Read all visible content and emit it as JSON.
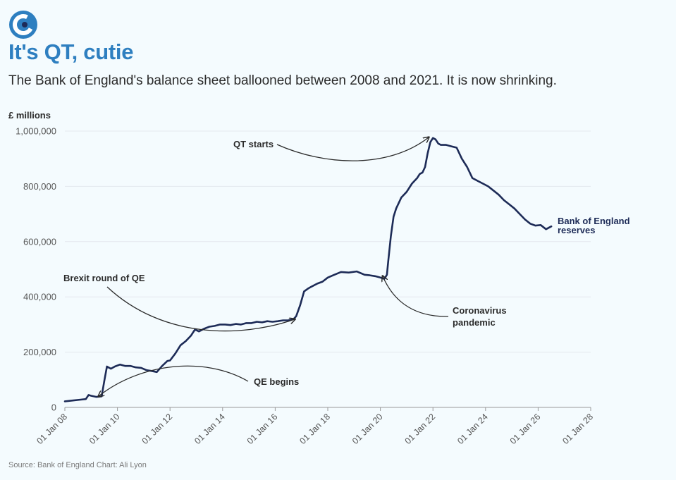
{
  "header": {
    "title": "It's QT, cutie",
    "subtitle": "The Bank of England's balance sheet ballooned between 2008 and 2021. It is now shrinking.",
    "logo_icon": "c-logo-icon"
  },
  "footer": {
    "source": "Source: Bank of England Chart: Ali Lyon"
  },
  "colors": {
    "title": "#2e7fc0",
    "line": "#1d2b57",
    "logo": "#2e7fc0"
  },
  "chart_data": {
    "type": "line",
    "ylabel": "£ millions",
    "ylim": [
      0,
      1000000
    ],
    "xlim": [
      2008,
      2028
    ],
    "y_ticks": [
      {
        "value": 0,
        "label": "0"
      },
      {
        "value": 200000,
        "label": "200,000"
      },
      {
        "value": 400000,
        "label": "400,000"
      },
      {
        "value": 600000,
        "label": "600,000"
      },
      {
        "value": 800000,
        "label": "800,000"
      },
      {
        "value": 1000000,
        "label": "1,000,000"
      }
    ],
    "x_ticks": [
      {
        "value": 2008,
        "label": "01 Jan 08"
      },
      {
        "value": 2010,
        "label": "01 Jan 10"
      },
      {
        "value": 2012,
        "label": "01 Jan 12"
      },
      {
        "value": 2014,
        "label": "01 Jan 14"
      },
      {
        "value": 2016,
        "label": "01 Jan 16"
      },
      {
        "value": 2018,
        "label": "01 Jan 18"
      },
      {
        "value": 2020,
        "label": "01 Jan 20"
      },
      {
        "value": 2022,
        "label": "01 Jan 22"
      },
      {
        "value": 2024,
        "label": "01 Jan 24"
      },
      {
        "value": 2026,
        "label": "01 Jan 26"
      },
      {
        "value": 2028,
        "label": "01 Jan 28"
      }
    ],
    "grid": true,
    "series": [
      {
        "name": "Bank of England reserves",
        "x": [
          2008.0,
          2008.3,
          2008.6,
          2008.8,
          2008.9,
          2009.0,
          2009.2,
          2009.4,
          2009.5,
          2009.6,
          2009.75,
          2009.9,
          2010.1,
          2010.3,
          2010.5,
          2010.7,
          2010.9,
          2011.1,
          2011.3,
          2011.5,
          2011.7,
          2011.9,
          2012.0,
          2012.2,
          2012.4,
          2012.6,
          2012.8,
          2012.95,
          2013.1,
          2013.3,
          2013.5,
          2013.7,
          2013.9,
          2014.1,
          2014.3,
          2014.5,
          2014.7,
          2014.9,
          2015.1,
          2015.3,
          2015.5,
          2015.7,
          2015.9,
          2016.1,
          2016.3,
          2016.5,
          2016.7,
          2016.8,
          2016.95,
          2017.1,
          2017.25,
          2017.4,
          2017.6,
          2017.8,
          2018.0,
          2018.2,
          2018.5,
          2018.8,
          2019.1,
          2019.4,
          2019.6,
          2019.8,
          2020.0,
          2020.15,
          2020.25,
          2020.3,
          2020.4,
          2020.5,
          2020.6,
          2020.8,
          2021.0,
          2021.2,
          2021.4,
          2021.5,
          2021.6,
          2021.7,
          2021.8,
          2021.9,
          2022.0,
          2022.1,
          2022.2,
          2022.3,
          2022.5,
          2022.7,
          2022.9,
          2023.1,
          2023.3,
          2023.5,
          2023.7,
          2023.9,
          2024.1,
          2024.3,
          2024.5,
          2024.7,
          2024.9,
          2025.1,
          2025.3,
          2025.5,
          2025.7,
          2025.9,
          2026.1,
          2026.3,
          2026.5
        ],
        "values": [
          22000,
          25000,
          28000,
          30000,
          45000,
          42000,
          38000,
          40000,
          95000,
          148000,
          140000,
          148000,
          155000,
          150000,
          150000,
          145000,
          143000,
          135000,
          132000,
          128000,
          150000,
          168000,
          170000,
          195000,
          225000,
          240000,
          260000,
          282000,
          275000,
          285000,
          292000,
          295000,
          300000,
          300000,
          298000,
          302000,
          300000,
          305000,
          305000,
          310000,
          308000,
          312000,
          310000,
          312000,
          315000,
          315000,
          320000,
          330000,
          370000,
          420000,
          430000,
          438000,
          448000,
          455000,
          470000,
          478000,
          490000,
          488000,
          492000,
          480000,
          478000,
          475000,
          470000,
          465000,
          480000,
          530000,
          620000,
          690000,
          720000,
          760000,
          780000,
          810000,
          830000,
          845000,
          850000,
          870000,
          920000,
          960000,
          975000,
          970000,
          955000,
          950000,
          950000,
          945000,
          940000,
          900000,
          870000,
          830000,
          820000,
          810000,
          800000,
          785000,
          770000,
          750000,
          735000,
          720000,
          700000,
          680000,
          665000,
          658000,
          660000,
          645000,
          655000
        ]
      }
    ],
    "annotations": [
      {
        "id": "qe-begins",
        "lines": [
          "QE begins"
        ],
        "x": 2009.3,
        "y": 40000
      },
      {
        "id": "brexit",
        "lines": [
          "Brexit round of QE"
        ],
        "x": 2016.75,
        "y": 320000
      },
      {
        "id": "qt-starts",
        "lines": [
          "QT starts"
        ],
        "x": 2021.95,
        "y": 975000
      },
      {
        "id": "covid",
        "lines": [
          "Coronavirus",
          "pandemic"
        ],
        "x": 2020.1,
        "y": 470000
      }
    ]
  }
}
